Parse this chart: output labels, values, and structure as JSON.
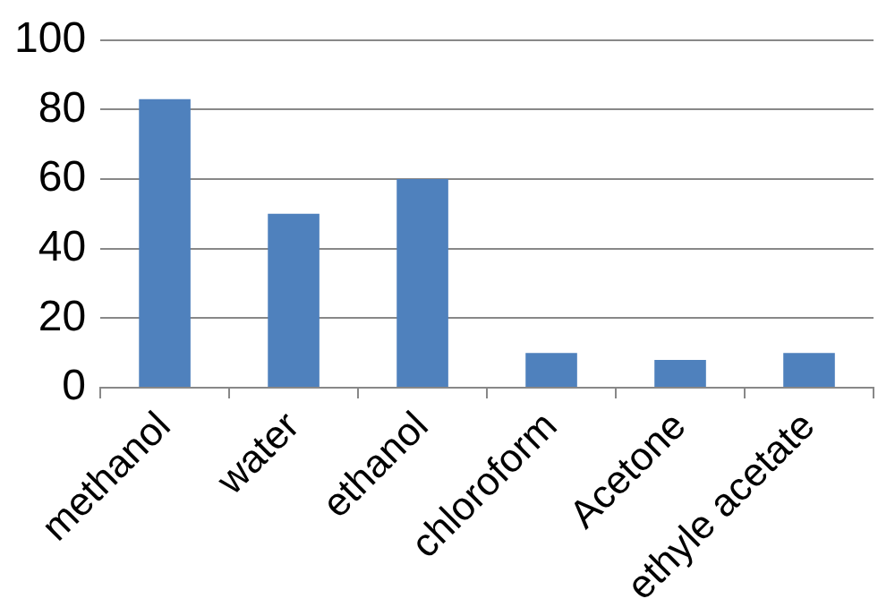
{
  "chart_data": {
    "type": "bar",
    "categories": [
      "methanol",
      "water",
      "ethanol",
      "chloroform",
      "Acetone",
      "ethyle acetate"
    ],
    "values": [
      83,
      50,
      60,
      10,
      8,
      10
    ],
    "color": "#4f81bd",
    "ylim": [
      0,
      100
    ],
    "yticks": [
      0,
      20,
      40,
      60,
      80,
      100
    ],
    "grid": "y",
    "legend": false
  }
}
